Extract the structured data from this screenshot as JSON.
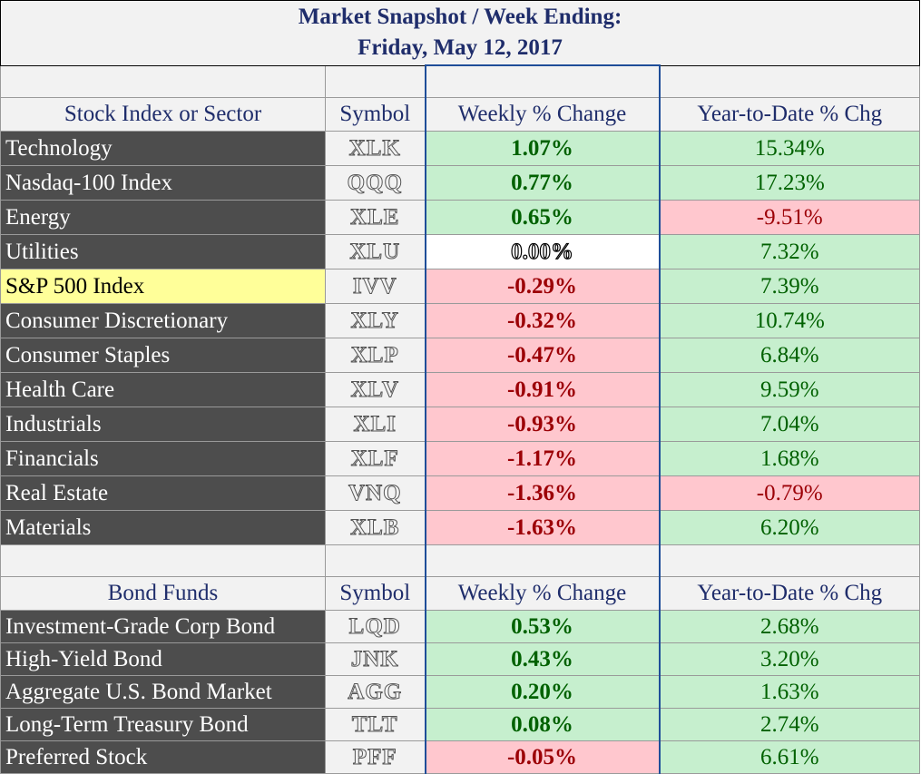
{
  "title": {
    "line1": "Market Snapshot / Week Ending:",
    "line2": "Friday, May 12, 2017"
  },
  "stocks": {
    "headers": [
      "Stock Index or Sector",
      "Symbol",
      "Weekly % Change",
      "Year-to-Date % Chg"
    ],
    "rows": [
      {
        "name": "Technology",
        "symbol": "XLK",
        "weekly": "1.07%",
        "ytd": "15.34%"
      },
      {
        "name": "Nasdaq-100 Index",
        "symbol": "QQQ",
        "weekly": "0.77%",
        "ytd": "17.23%"
      },
      {
        "name": "Energy",
        "symbol": "XLE",
        "weekly": "0.65%",
        "ytd": "-9.51%"
      },
      {
        "name": "Utilities",
        "symbol": "XLU",
        "weekly": "0.00%",
        "ytd": "7.32%"
      },
      {
        "name": "S&P 500 Index",
        "symbol": "IVV",
        "weekly": "-0.29%",
        "ytd": "7.39%"
      },
      {
        "name": "Consumer Discretionary",
        "symbol": "XLY",
        "weekly": "-0.32%",
        "ytd": "10.74%"
      },
      {
        "name": "Consumer Staples",
        "symbol": "XLP",
        "weekly": "-0.47%",
        "ytd": "6.84%"
      },
      {
        "name": "Health Care",
        "symbol": "XLV",
        "weekly": "-0.91%",
        "ytd": "9.59%"
      },
      {
        "name": "Industrials",
        "symbol": "XLI",
        "weekly": "-0.93%",
        "ytd": "7.04%"
      },
      {
        "name": "Financials",
        "symbol": "XLF",
        "weekly": "-1.17%",
        "ytd": "1.68%"
      },
      {
        "name": "Real Estate",
        "symbol": "VNQ",
        "weekly": "-1.36%",
        "ytd": "-0.79%"
      },
      {
        "name": "Materials",
        "symbol": "XLB",
        "weekly": "-1.63%",
        "ytd": "6.20%"
      }
    ]
  },
  "bonds": {
    "headers": [
      "Bond Funds",
      "Symbol",
      "Weekly % Change",
      "Year-to-Date % Chg"
    ],
    "rows": [
      {
        "name": "Investment-Grade Corp Bond",
        "symbol": "LQD",
        "weekly": "0.53%",
        "ytd": "2.68%"
      },
      {
        "name": "High-Yield Bond",
        "symbol": "JNK",
        "weekly": "0.43%",
        "ytd": "3.20%"
      },
      {
        "name": "Aggregate U.S. Bond Market",
        "symbol": "AGG",
        "weekly": "0.20%",
        "ytd": "1.63%"
      },
      {
        "name": "Long-Term Treasury Bond",
        "symbol": "TLT",
        "weekly": "0.08%",
        "ytd": "2.74%"
      },
      {
        "name": "Preferred Stock",
        "symbol": "PFF",
        "weekly": "-0.05%",
        "ytd": "6.61%"
      }
    ]
  },
  "colors": {
    "positive_fill": "#c6efce",
    "positive_text": "#006100",
    "negative_fill": "#ffc7ce",
    "negative_text": "#9c0006",
    "highlight_fill": "#ffff99",
    "name_fill": "#4d4d4d",
    "header_text": "#1f2d6b"
  }
}
